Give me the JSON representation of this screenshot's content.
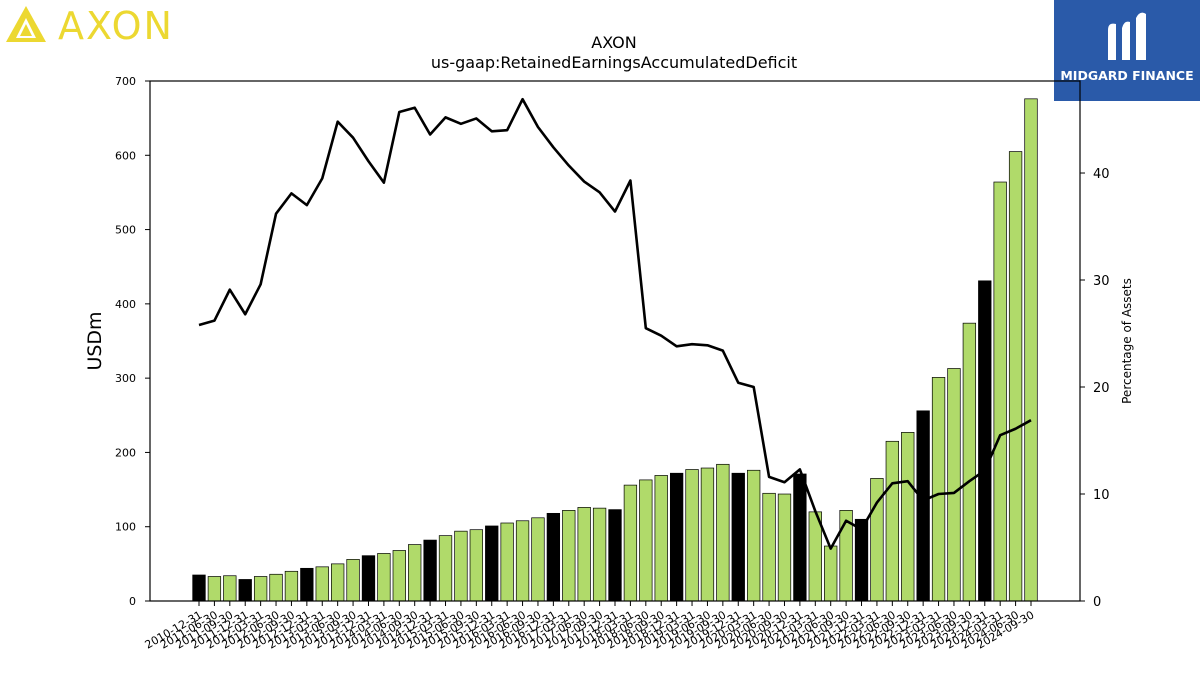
{
  "brand": {
    "name": "AXON",
    "logo_icon": "axon-triangle-logo",
    "color": "#ecd831"
  },
  "badge": {
    "name": "MIDGARD FINANCE",
    "logo_icon": "midgard-m-logo",
    "color": "#2a5aa9"
  },
  "chart_data": {
    "type": "bar",
    "title": "AXON",
    "subtitle": "us-gaap:RetainedEarningsAccumulatedDeficit",
    "ylabel": "USDm",
    "y2label": "Percentage of Assets",
    "ylim": [
      0,
      700
    ],
    "y2lim": [
      0,
      48.6
    ],
    "yticks": [
      0,
      100,
      200,
      300,
      400,
      500,
      600,
      700
    ],
    "y2ticks": [
      0,
      10,
      20,
      30,
      40
    ],
    "grid": false,
    "colors": {
      "bar": "#b0da6a",
      "bar_q4": "#000000",
      "line": "#000000"
    },
    "categories": [
      "2010-12-31",
      "2011-06-30",
      "2011-09-30",
      "2011-12-31",
      "2012-03-31",
      "2012-06-30",
      "2012-09-30",
      "2012-12-31",
      "2013-03-31",
      "2013-06-30",
      "2013-09-30",
      "2013-12-31",
      "2014-03-31",
      "2014-06-30",
      "2014-09-30",
      "2014-12-31",
      "2015-03-31",
      "2015-06-30",
      "2015-09-30",
      "2015-12-31",
      "2016-03-31",
      "2016-06-30",
      "2016-09-30",
      "2016-12-31",
      "2017-03-31",
      "2017-06-30",
      "2017-09-30",
      "2017-12-31",
      "2018-03-31",
      "2018-06-30",
      "2018-09-30",
      "2018-12-31",
      "2019-03-31",
      "2019-06-30",
      "2019-09-30",
      "2019-12-31",
      "2020-03-31",
      "2020-06-30",
      "2020-09-30",
      "2020-12-31",
      "2021-03-31",
      "2021-06-30",
      "2021-09-30",
      "2021-12-31",
      "2022-03-31",
      "2022-06-30",
      "2022-09-30",
      "2022-12-31",
      "2023-03-31",
      "2023-06-30",
      "2023-09-30",
      "2023-12-31",
      "2024-03-31",
      "2024-06-30",
      "2024-09-30"
    ],
    "series": [
      {
        "type": "bar",
        "values": [
          35,
          33,
          34,
          29,
          33,
          36,
          40,
          44,
          46,
          50,
          56,
          61,
          64,
          68,
          76,
          82,
          88,
          94,
          96,
          101,
          105,
          108,
          112,
          118,
          122,
          126,
          125,
          123,
          156,
          163,
          169,
          172,
          177,
          179,
          184,
          172,
          176,
          145,
          144,
          171,
          120,
          74,
          122,
          110,
          165,
          215,
          227,
          256,
          301,
          313,
          374,
          431,
          564,
          605,
          676
        ]
      },
      {
        "type": "line",
        "values": [
          25.8,
          26.2,
          29.1,
          26.8,
          29.6,
          36.2,
          38.1,
          37,
          39.5,
          44.8,
          43.3,
          41.1,
          39.1,
          45.7,
          46.1,
          43.6,
          45.2,
          44.6,
          45.1,
          43.9,
          44,
          46.9,
          44.3,
          42.4,
          40.7,
          39.2,
          38.2,
          36.4,
          39.3,
          25.5,
          24.8,
          23.8,
          24,
          23.9,
          23.4,
          20.4,
          20,
          11.6,
          11.1,
          12.3,
          8.4,
          4.9,
          7.5,
          6.7,
          9.2,
          11,
          11.2,
          9.4,
          10,
          10.1,
          11.2,
          12.2,
          15.5,
          16.1,
          16.9
        ]
      }
    ]
  }
}
